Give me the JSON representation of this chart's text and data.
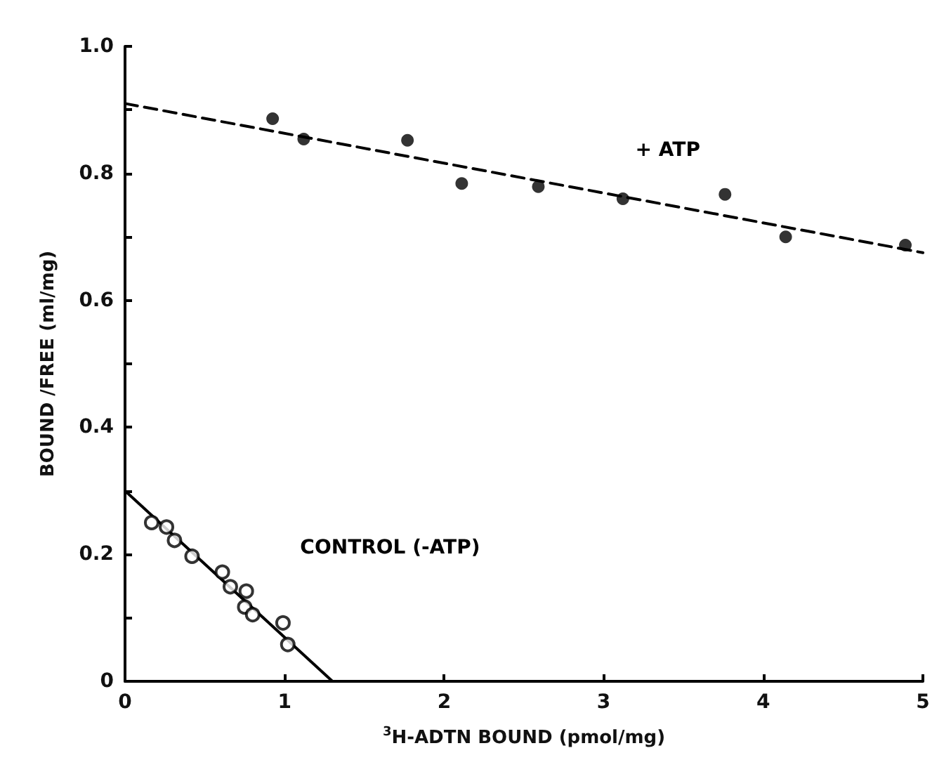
{
  "chart_data": {
    "type": "scatter",
    "xlabel": "$^{3}$H-ADTN BOUND (pmol/mg)",
    "ylabel": "BOUND /FREE (ml/mg)",
    "xlim": [
      0,
      5
    ],
    "xticks": [
      0,
      1,
      2,
      3,
      4,
      5
    ],
    "ylim": [
      0,
      1
    ],
    "yticks": [
      0,
      {
        "value": 0.1,
        "label": null
      },
      0.2,
      {
        "value": 0.3,
        "label": null
      },
      0.4,
      {
        "value": 0.5,
        "label": null
      },
      0.6,
      {
        "value": 0.7,
        "label": null
      },
      0.8,
      {
        "value": 0.9,
        "label": null
      },
      {
        "value": 1,
        "label": "1.0"
      }
    ],
    "grid": false,
    "legend": false,
    "series": [
      {
        "name": "+ ATP",
        "marker": "circle",
        "color": "#000000",
        "x": [
          0.925,
          1.12,
          1.77,
          2.11,
          2.59,
          3.12,
          3.76,
          4.14,
          4.89
        ],
        "values": [
          0.886,
          0.854,
          0.852,
          0.784,
          0.779,
          0.76,
          0.767,
          0.7,
          0.687
        ]
      },
      {
        "type": "line",
        "marker": "none",
        "line_style": "dashed",
        "color": "#000000",
        "x": [
          0,
          5
        ],
        "values": [
          0.91,
          0.675
        ]
      },
      {
        "name": "CONTROL (-ATP)",
        "marker": "emptyCircle",
        "color": "#000000",
        "x": [
          0.167,
          0.26,
          0.31,
          0.42,
          0.61,
          0.66,
          0.76,
          0.75,
          0.8,
          0.99,
          1.02
        ],
        "values": [
          0.25,
          0.243,
          0.222,
          0.197,
          0.172,
          0.149,
          0.142,
          0.117,
          0.105,
          0.092,
          0.058
        ]
      },
      {
        "type": "line",
        "marker": "none",
        "line_style": "solid",
        "color": "#000000",
        "x": [
          0,
          1.3
        ],
        "values": [
          0.3,
          0
        ]
      }
    ]
  }
}
